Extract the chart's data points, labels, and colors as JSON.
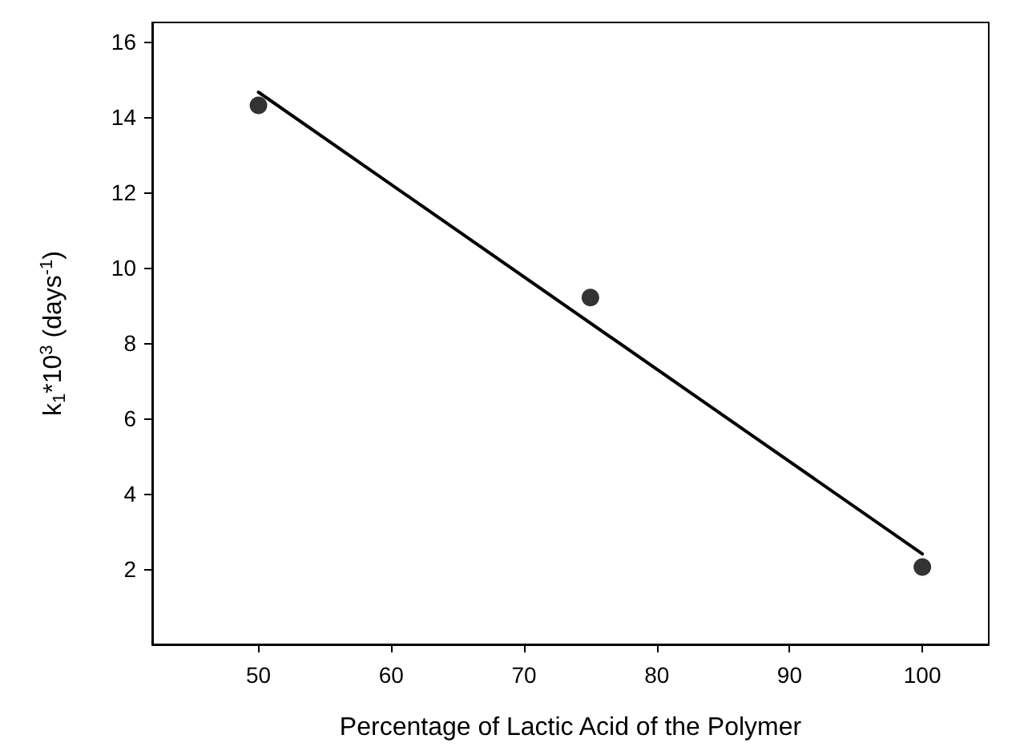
{
  "chart_data": {
    "type": "scatter",
    "xlabel": "Percentage of Lactic Acid of the Polymer",
    "ylabel": "k$_{1}$*10$^{3}$ (days$^{-1}$)",
    "series": [
      {
        "color": "#000000",
        "x": [
          50,
          75,
          100
        ],
        "values": [
          14.3,
          9.2,
          2.05
        ],
        "marker": "circle"
      },
      {
        "type": "line",
        "color": "#000000",
        "x": [
          50,
          100
        ],
        "values": [
          14.65,
          2.4
        ],
        "marker": "none",
        "line_style": "solid"
      }
    ],
    "xlim": [
      42,
      105
    ],
    "xticks": [
      50,
      60,
      70,
      80,
      90,
      100
    ],
    "ylim": [
      0,
      16.5
    ],
    "yticks": [
      2,
      4,
      6,
      8,
      10,
      12,
      14,
      16
    ],
    "grid": false
  }
}
